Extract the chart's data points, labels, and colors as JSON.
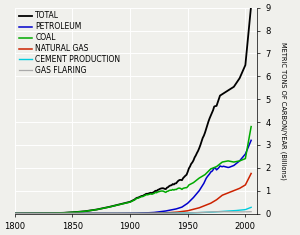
{
  "ylabel": "METRIC TONS OF CARBON/YEAR (Billions)",
  "xlim": [
    1800,
    2010
  ],
  "ylim": [
    0,
    9
  ],
  "yticks": [
    0,
    1,
    2,
    3,
    4,
    5,
    6,
    7,
    8,
    9
  ],
  "xticks": [
    1800,
    1850,
    1900,
    1950,
    2000
  ],
  "background_color": "#f0f0ec",
  "grid_color": "#ffffff",
  "series": {
    "TOTAL": {
      "color": "#000000",
      "lw": 1.3
    },
    "PETROLEUM": {
      "color": "#0000cc",
      "lw": 1.1
    },
    "COAL": {
      "color": "#00aa00",
      "lw": 1.1
    },
    "NATURAL GAS": {
      "color": "#cc2200",
      "lw": 1.1
    },
    "CEMENT PRODUCTION": {
      "color": "#00ccdd",
      "lw": 1.0
    },
    "GAS FLARING": {
      "color": "#aaaaaa",
      "lw": 0.9
    }
  },
  "legend_fontsize": 5.5,
  "tick_fontsize": 6.0,
  "ylabel_fontsize": 4.8
}
